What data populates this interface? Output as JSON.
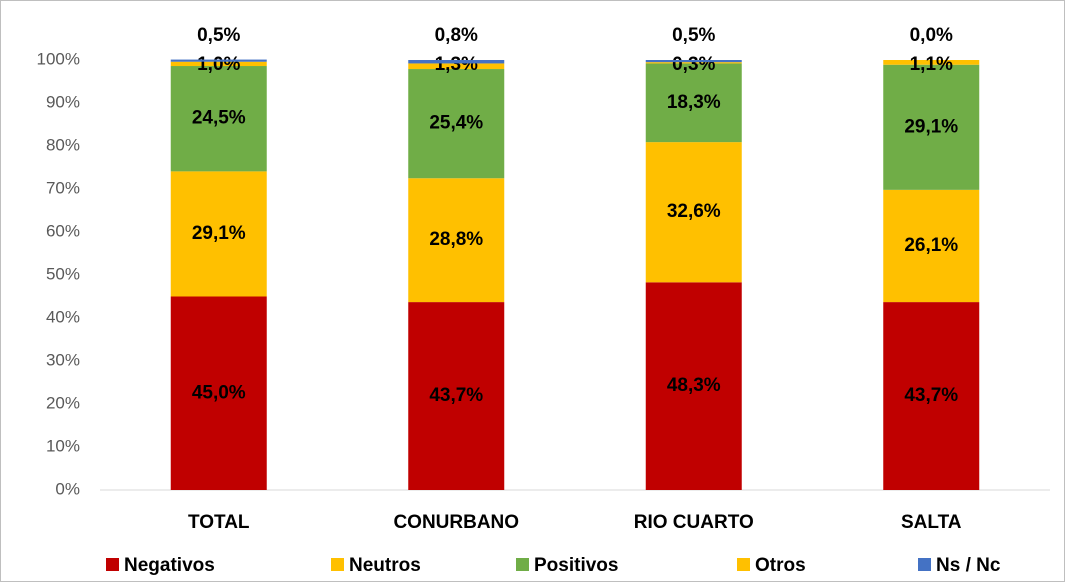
{
  "chart_data": {
    "type": "stacked_bar",
    "categories": [
      "TOTAL",
      "CONURBANO",
      "RIO CUARTO",
      "SALTA"
    ],
    "series": [
      {
        "name": "Negativos",
        "color": "#c00000",
        "values": [
          45.0,
          43.7,
          48.3,
          43.7
        ],
        "value_labels": [
          "45,0%",
          "43,7%",
          "48,3%",
          "43,7%"
        ]
      },
      {
        "name": "Neutros",
        "color": "#ffc000",
        "values": [
          29.1,
          28.8,
          32.6,
          26.1
        ],
        "value_labels": [
          "29,1%",
          "28,8%",
          "32,6%",
          "26,1%"
        ]
      },
      {
        "name": "Positivos",
        "color": "#70ad47",
        "values": [
          24.5,
          25.4,
          18.3,
          29.1
        ],
        "value_labels": [
          "24,5%",
          "25,4%",
          "18,3%",
          "29,1%"
        ]
      },
      {
        "name": "Otros",
        "color": "#ffc000",
        "values": [
          1.0,
          1.3,
          0.3,
          1.1
        ],
        "value_labels": [
          "1,0%",
          "1,3%",
          "0,3%",
          "1,1%"
        ]
      },
      {
        "name": "Ns / Nc",
        "color": "#4472c4",
        "values": [
          0.5,
          0.8,
          0.5,
          0.0
        ],
        "value_labels": [
          "0,5%",
          "0,8%",
          "0,5%",
          "0,0%"
        ]
      }
    ],
    "ylim": [
      0,
      100
    ],
    "yticks": [
      {
        "value": 0,
        "label": "0%"
      },
      {
        "value": 10,
        "label": "10%"
      },
      {
        "value": 20,
        "label": "20%"
      },
      {
        "value": 30,
        "label": "30%"
      },
      {
        "value": 40,
        "label": "40%"
      },
      {
        "value": 50,
        "label": "50%"
      },
      {
        "value": 60,
        "label": "60%"
      },
      {
        "value": 70,
        "label": "70%"
      },
      {
        "value": 80,
        "label": "80%"
      },
      {
        "value": 90,
        "label": "90%"
      },
      {
        "value": 100,
        "label": "100%"
      }
    ],
    "grid": false,
    "legend": "bottom"
  }
}
